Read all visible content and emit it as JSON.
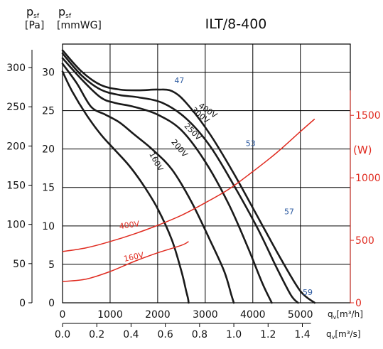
{
  "chart_data": {
    "type": "line",
    "title": "ILT/8-400",
    "axes": {
      "y_pa": {
        "label_main": "p",
        "label_sub": "sf",
        "unit": "[Pa]",
        "ticks": [
          0,
          50,
          100,
          150,
          200,
          250,
          300
        ],
        "range": [
          0,
          330
        ]
      },
      "y_mmwg": {
        "label_main": "p",
        "label_sub": "sf",
        "unit": "[mmWG]",
        "ticks": [
          0,
          5,
          10,
          15,
          20,
          25,
          30
        ],
        "range": [
          0,
          33.65
        ]
      },
      "y_power": {
        "unit": "(W)",
        "ticks": [
          0,
          500,
          1000,
          1500
        ],
        "range": [
          0,
          2070
        ]
      },
      "x_m3h": {
        "label_main": "q",
        "label_sub": "v",
        "unit": "[m³/h]",
        "ticks": [
          0,
          1000,
          2000,
          3000,
          4000,
          5000
        ],
        "range": [
          0,
          6050
        ]
      },
      "x_m3s": {
        "label_main": "q",
        "label_sub": "v",
        "unit": "[m³/s]",
        "ticks": [
          "0.0",
          "0.2",
          "0.4",
          "0.6",
          "0.8",
          "1.0",
          "1.2",
          "1.4"
        ],
        "range": [
          0,
          1.68
        ]
      }
    },
    "grid": true,
    "pressure_series": [
      {
        "name": "160V",
        "x": [
          0,
          200,
          500,
          800,
          1100,
          1400,
          1700,
          2000,
          2300,
          2500,
          2600,
          2640,
          2650
        ],
        "y": [
          295,
          270,
          240,
          215,
          195,
          175,
          150,
          120,
          80,
          40,
          15,
          5,
          0
        ]
      },
      {
        "name": "200V",
        "x": [
          0,
          300,
          600,
          900,
          1200,
          1500,
          1900,
          2300,
          2700,
          3100,
          3400,
          3550,
          3600
        ],
        "y": [
          305,
          280,
          250,
          240,
          230,
          215,
          195,
          170,
          130,
          80,
          40,
          10,
          0
        ]
      },
      {
        "name": "250V",
        "x": [
          0,
          400,
          800,
          1100,
          1500,
          2000,
          2500,
          3000,
          3500,
          3900,
          4200,
          4400
        ],
        "y": [
          312,
          285,
          262,
          255,
          250,
          240,
          220,
          180,
          125,
          70,
          25,
          0
        ]
      },
      {
        "name": "300V",
        "x": [
          0,
          400,
          800,
          1200,
          1600,
          2100,
          2600,
          3100,
          3600,
          4100,
          4500,
          4800,
          4950
        ],
        "y": [
          318,
          290,
          272,
          265,
          262,
          255,
          235,
          200,
          150,
          95,
          45,
          10,
          0
        ]
      },
      {
        "name": "400V",
        "x": [
          0,
          400,
          800,
          1200,
          1600,
          2000,
          2300,
          2600,
          3100,
          3600,
          4100,
          4600,
          5000,
          5300
        ],
        "y": [
          322,
          295,
          278,
          272,
          271,
          272,
          270,
          255,
          215,
          165,
          110,
          55,
          15,
          0
        ]
      }
    ],
    "power_series": [
      {
        "name": "400V",
        "x": [
          0,
          500,
          1000,
          1500,
          2000,
          2500,
          3000,
          3500,
          4000,
          4500,
          5000,
          5300
        ],
        "y": [
          410,
          440,
          490,
          550,
          620,
          700,
          800,
          910,
          1050,
          1200,
          1370,
          1470
        ]
      },
      {
        "name": "160V",
        "x": [
          0,
          500,
          1000,
          1500,
          2000,
          2500,
          2650
        ],
        "y": [
          170,
          190,
          250,
          330,
          400,
          460,
          490
        ]
      }
    ],
    "annotations": [
      {
        "text": "47",
        "x": 2350,
        "y": 280
      },
      {
        "text": "53",
        "x": 3850,
        "y": 200
      },
      {
        "text": "57",
        "x": 4660,
        "y": 113
      },
      {
        "text": "59",
        "x": 5050,
        "y": 10
      }
    ],
    "colors": {
      "pressure": "#1a1a1a",
      "power": "#e02b20",
      "efficiency": "#2c5aa0",
      "grid": "#000000"
    }
  }
}
